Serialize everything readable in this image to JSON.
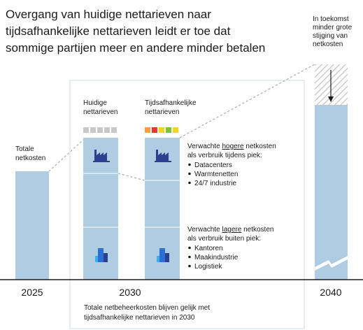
{
  "title": {
    "lines": [
      "Overgang van huidige nettarieven naar",
      "tijdsafhankelijke nettarieven leidt er toe dat",
      "sommige partijen meer en andere minder betalen"
    ]
  },
  "total_label": {
    "lines": [
      "Totale",
      "netkosten"
    ]
  },
  "current_label": {
    "lines": [
      "Huidige",
      "nettarieven"
    ]
  },
  "timed_label": {
    "lines": [
      "Tijdsafhankelijke",
      "nettarieven"
    ]
  },
  "future_note": {
    "lines": [
      "In toekomst",
      "minder grote",
      "stijging van",
      "netkosten"
    ]
  },
  "higher": {
    "before": "Verwachte ",
    "emphasis": "hogere",
    "after": " netkosten",
    "line2": "als verbruik tijdens piek:",
    "items": [
      "Datacenters",
      "Warmtenetten",
      "24/7 industrie"
    ]
  },
  "lower": {
    "before": "Verwachte ",
    "emphasis": "lagere",
    "after": " netkosten",
    "line2": "als verbruik buiten piek:",
    "items": [
      "Kantoren",
      "Maakindustrie",
      "Logistiek"
    ]
  },
  "years": [
    "2025",
    "2030",
    "2040"
  ],
  "footer": {
    "lines": [
      "Totale netbeheerkosten blijven gelijk met",
      "tijdsafhankelijke nettarieven in 2030"
    ]
  }
}
